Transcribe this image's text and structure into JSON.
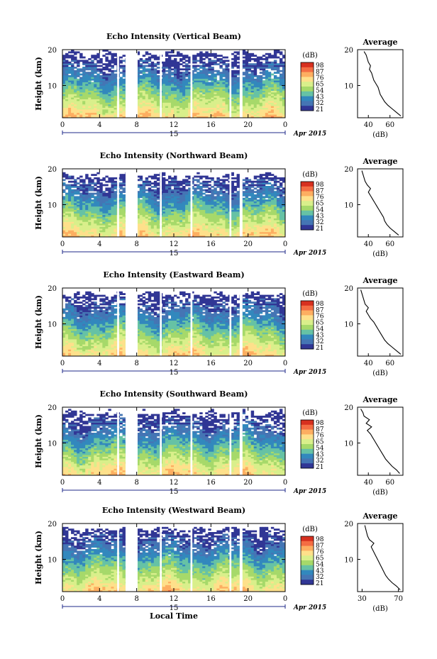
{
  "chart_data": [
    {
      "type": "heatmap",
      "title": "Echo Intensity (Vertical Beam)",
      "ylabel": "Height (km)",
      "xticks": [
        "0",
        "4",
        "8",
        "12",
        "16",
        "20",
        "0"
      ],
      "yticks": [
        "20",
        "10"
      ],
      "date_label": "15",
      "month_label": "Apr 2015",
      "xlim": [
        0,
        24
      ],
      "ylim": [
        1,
        20
      ],
      "colorbar_unit": "(dB)",
      "colorbar_ticks": [
        "98",
        "87",
        "76",
        "65",
        "54",
        "43",
        "32",
        "21"
      ],
      "data_gaps_hours": [
        [
          5.9,
          6.1
        ],
        [
          6.8,
          8.1
        ],
        [
          10.5,
          10.7
        ],
        [
          13.8,
          14.0
        ],
        [
          18.0,
          18.2
        ],
        [
          19.1,
          19.4
        ]
      ],
      "echo_top_km": 19.2,
      "average_profile": {
        "title": "Average",
        "xlabel": "(dB)",
        "xticks": [
          "40",
          "60"
        ],
        "yticks": [
          "20",
          "10"
        ],
        "xlim": [
          30,
          72
        ],
        "ylim": [
          1,
          20
        ],
        "height_km": [
          1.5,
          2.5,
          3.5,
          4.5,
          5.5,
          6.5,
          7.5,
          8.5,
          9.5,
          10.5,
          11.5,
          12.5,
          13.5,
          14.5,
          15.5,
          16.5,
          17.5,
          18.5,
          19.5
        ],
        "intensity_db": [
          70,
          66,
          62,
          58,
          55,
          53,
          51,
          50,
          49,
          47,
          45,
          44,
          43,
          41,
          42,
          40,
          39,
          38,
          36
        ]
      }
    },
    {
      "type": "heatmap",
      "title": "Echo Intensity (Northward Beam)",
      "ylabel": "Height (km)",
      "xticks": [
        "0",
        "4",
        "8",
        "12",
        "16",
        "20",
        "0"
      ],
      "yticks": [
        "20",
        "10"
      ],
      "date_label": "15",
      "month_label": "Apr 2015",
      "xlim": [
        0,
        24
      ],
      "ylim": [
        1,
        20
      ],
      "colorbar_unit": "(dB)",
      "colorbar_ticks": [
        "98",
        "87",
        "76",
        "65",
        "54",
        "43",
        "32",
        "21"
      ],
      "data_gaps_hours": [
        [
          5.9,
          6.1
        ],
        [
          6.8,
          8.1
        ],
        [
          10.5,
          10.7
        ],
        [
          13.8,
          14.0
        ],
        [
          18.0,
          18.2
        ],
        [
          19.1,
          19.4
        ]
      ],
      "echo_top_km": 18.4,
      "average_profile": {
        "title": "Average",
        "xlabel": "(dB)",
        "xticks": [
          "40",
          "60"
        ],
        "yticks": [
          "20",
          "10"
        ],
        "xlim": [
          30,
          72
        ],
        "ylim": [
          1,
          20
        ],
        "height_km": [
          1.5,
          2.5,
          3.5,
          4.5,
          5.5,
          6.5,
          7.5,
          8.5,
          9.5,
          10.5,
          11.5,
          12.5,
          13.5,
          14.5,
          15.5,
          16.5,
          17.5,
          18.5,
          19.5
        ],
        "intensity_db": [
          68,
          64,
          60,
          57,
          55,
          54,
          52,
          50,
          48,
          46,
          44,
          42,
          40,
          42,
          39,
          37,
          36,
          35,
          34
        ]
      }
    },
    {
      "type": "heatmap",
      "title": "Echo Intensity (Eastward Beam)",
      "ylabel": "Height (km)",
      "xticks": [
        "0",
        "4",
        "8",
        "12",
        "16",
        "20",
        "0"
      ],
      "yticks": [
        "20",
        "10"
      ],
      "date_label": "15",
      "month_label": "Apr 2015",
      "xlim": [
        0,
        24
      ],
      "ylim": [
        1,
        20
      ],
      "colorbar_unit": "(dB)",
      "colorbar_ticks": [
        "98",
        "87",
        "76",
        "65",
        "54",
        "43",
        "32",
        "21"
      ],
      "data_gaps_hours": [
        [
          5.9,
          6.1
        ],
        [
          6.8,
          8.1
        ],
        [
          10.5,
          10.7
        ],
        [
          13.8,
          14.0
        ],
        [
          18.0,
          18.2
        ],
        [
          19.1,
          19.4
        ]
      ],
      "echo_top_km": 18.6,
      "average_profile": {
        "title": "Average",
        "xlabel": "(dB)",
        "xticks": [
          "40",
          "60"
        ],
        "yticks": [
          "20",
          "10"
        ],
        "xlim": [
          30,
          72
        ],
        "ylim": [
          1,
          20
        ],
        "height_km": [
          1.5,
          2.5,
          3.5,
          4.5,
          5.5,
          6.5,
          7.5,
          8.5,
          9.5,
          10.5,
          11.5,
          12.5,
          13.5,
          14.5,
          15.5,
          16.5,
          17.5,
          18.5,
          19.5
        ],
        "intensity_db": [
          70,
          66,
          62,
          58,
          55,
          53,
          51,
          49,
          47,
          45,
          42,
          40,
          38,
          40,
          37,
          36,
          35,
          34,
          33
        ]
      }
    },
    {
      "type": "heatmap",
      "title": "Echo Intensity (Southward Beam)",
      "ylabel": "Height (km)",
      "xticks": [
        "0",
        "4",
        "8",
        "12",
        "16",
        "20",
        "0"
      ],
      "yticks": [
        "20",
        "10"
      ],
      "date_label": "15",
      "month_label": "Apr 2015",
      "xlim": [
        0,
        24
      ],
      "ylim": [
        1,
        20
      ],
      "colorbar_unit": "(dB)",
      "colorbar_ticks": [
        "98",
        "87",
        "76",
        "65",
        "54",
        "43",
        "32",
        "21"
      ],
      "data_gaps_hours": [
        [
          5.9,
          6.1
        ],
        [
          6.8,
          8.1
        ],
        [
          10.5,
          10.7
        ],
        [
          13.8,
          14.0
        ],
        [
          18.0,
          18.2
        ],
        [
          19.1,
          19.4
        ]
      ],
      "echo_top_km": 18.8,
      "average_profile": {
        "title": "Average",
        "xlabel": "(dB)",
        "xticks": [
          "40",
          "60"
        ],
        "yticks": [
          "20",
          "10"
        ],
        "xlim": [
          30,
          72
        ],
        "ylim": [
          1,
          20
        ],
        "height_km": [
          1.5,
          2.5,
          3.5,
          4.5,
          5.5,
          6.5,
          7.5,
          8.5,
          9.5,
          10.5,
          11.5,
          12.5,
          13.5,
          14.5,
          15.5,
          16.5,
          17.5,
          18.5,
          19.5
        ],
        "intensity_db": [
          69,
          66,
          62,
          59,
          56,
          54,
          52,
          50,
          48,
          46,
          44,
          42,
          39,
          43,
          38,
          41,
          36,
          35,
          33
        ]
      }
    },
    {
      "type": "heatmap",
      "title": "Echo Intensity (Westward Beam)",
      "ylabel": "Height (km)",
      "xlabel": "Local Time",
      "xticks": [
        "0",
        "4",
        "8",
        "12",
        "16",
        "20",
        "0"
      ],
      "yticks": [
        "20",
        "10"
      ],
      "date_label": "15",
      "month_label": "Apr 2015",
      "xlim": [
        0,
        24
      ],
      "ylim": [
        1,
        20
      ],
      "colorbar_unit": "(dB)",
      "colorbar_ticks": [
        "98",
        "87",
        "76",
        "65",
        "54",
        "43",
        "32",
        "21"
      ],
      "data_gaps_hours": [
        [
          5.9,
          6.1
        ],
        [
          6.8,
          8.1
        ],
        [
          10.5,
          10.7
        ],
        [
          13.8,
          14.0
        ],
        [
          18.0,
          18.2
        ],
        [
          19.1,
          19.4
        ]
      ],
      "echo_top_km": 18.6,
      "average_profile": {
        "title": "Average",
        "xlabel": "(dB)",
        "xticks": [
          "30",
          "70"
        ],
        "yticks": [
          "20",
          "10"
        ],
        "xlim": [
          25,
          75
        ],
        "ylim": [
          1,
          20
        ],
        "height_km": [
          1.5,
          2.5,
          3.5,
          4.5,
          5.5,
          6.5,
          7.5,
          8.5,
          9.5,
          10.5,
          11.5,
          12.5,
          13.5,
          14.5,
          15.5,
          16.5,
          17.5,
          18.5,
          19.5
        ],
        "intensity_db": [
          72,
          68,
          63,
          59,
          56,
          54,
          52,
          50,
          48,
          46,
          44,
          42,
          40,
          43,
          38,
          36,
          35,
          34,
          33
        ]
      }
    }
  ],
  "colorbar_colors": [
    "#d7301f",
    "#f46d43",
    "#fdae61",
    "#fee08b",
    "#d9ef8b",
    "#a6d96a",
    "#66c2a5",
    "#3288bd",
    "#4575b4",
    "#313695"
  ]
}
